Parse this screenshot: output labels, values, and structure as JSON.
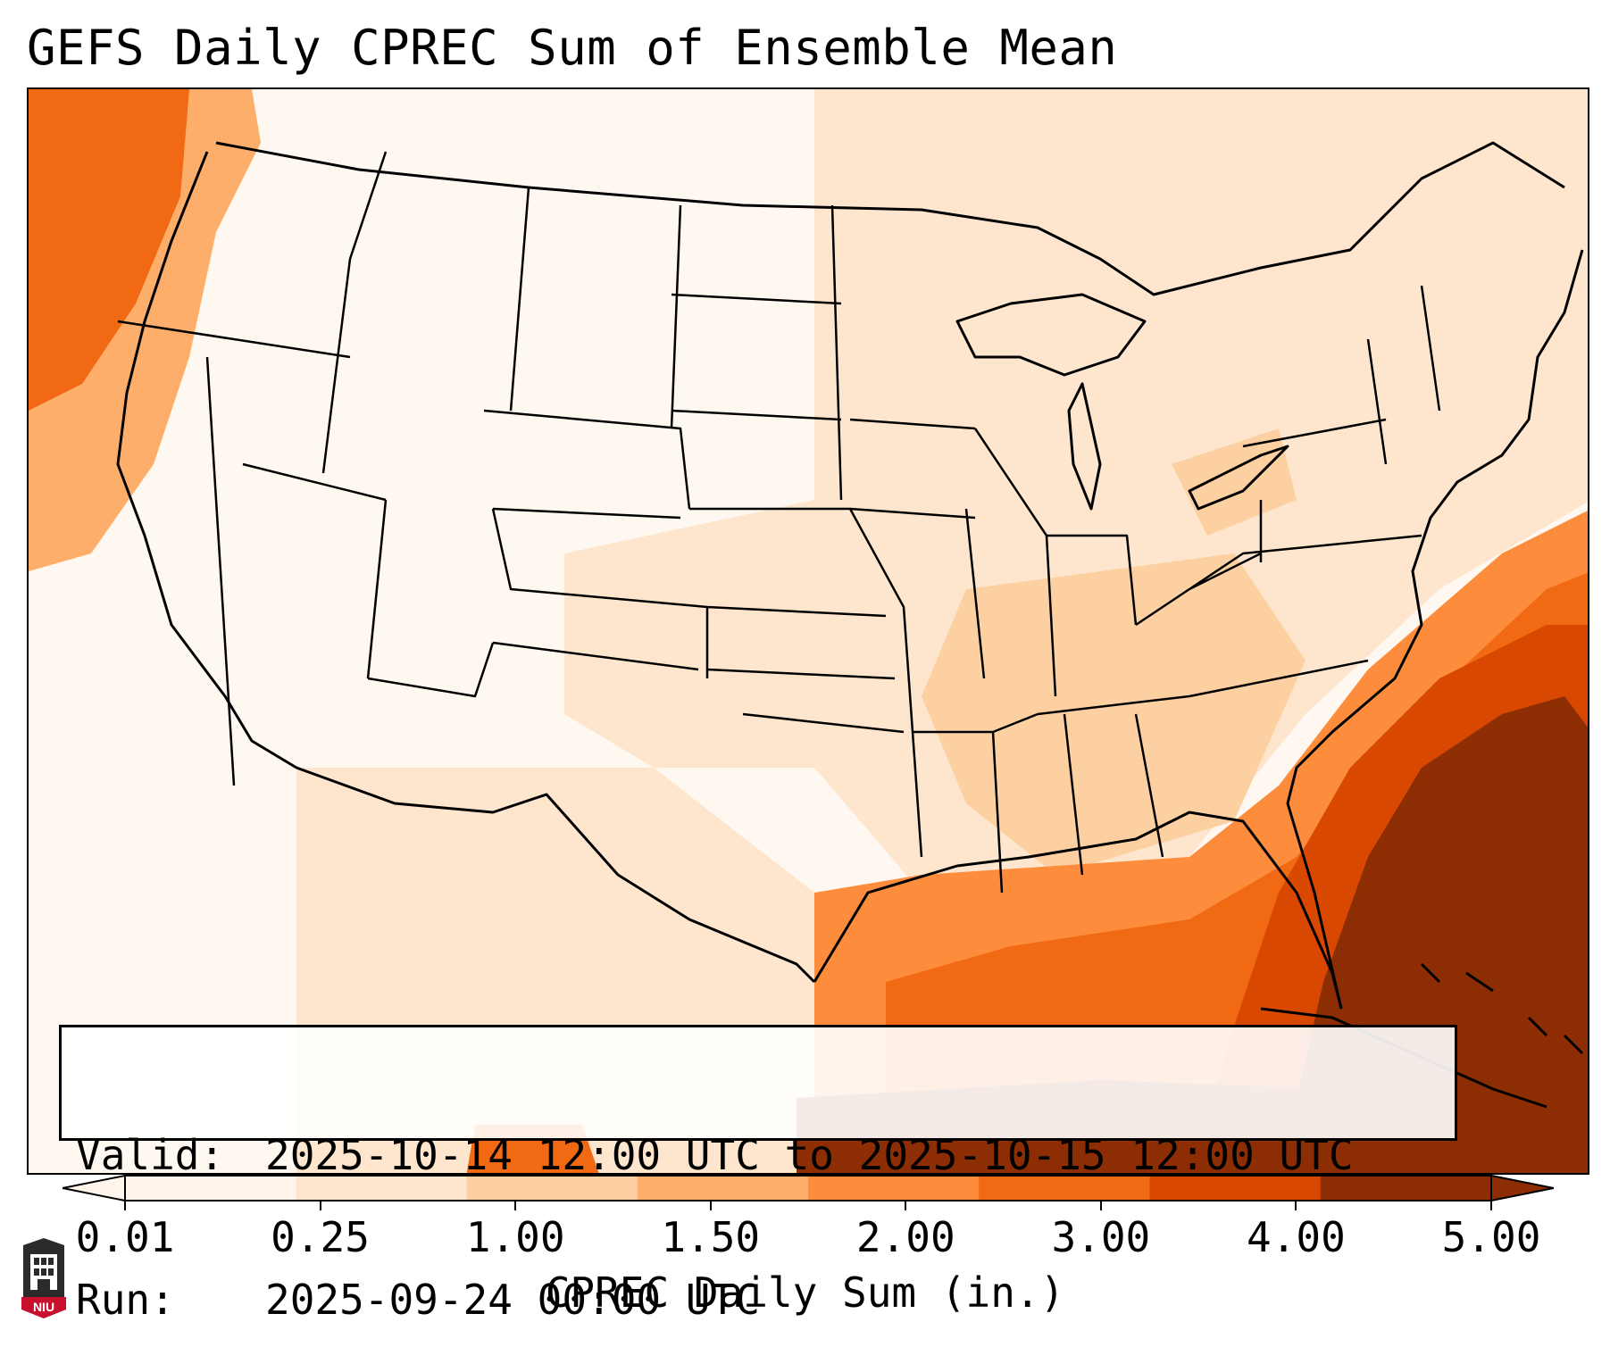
{
  "title": "GEFS Daily CPREC Sum of Ensemble Mean",
  "info": {
    "valid_label": "Valid:",
    "valid_value": "2025-10-14 12:00 UTC to 2025-10-15 12:00 UTC",
    "run_label": "Run:",
    "run_value": "2025-09-24 00:00 UTC"
  },
  "colorbar": {
    "label": "CPREC Daily Sum (in.)",
    "ticks": [
      "0.01",
      "0.25",
      "1.00",
      "1.50",
      "2.00",
      "3.00",
      "4.00",
      "5.00"
    ],
    "colors": [
      "#fff5eb",
      "#fee6ce",
      "#fdd0a2",
      "#fdae6b",
      "#fd8d3c",
      "#f16913",
      "#d94801",
      "#8c2d04"
    ],
    "extend": "both"
  },
  "logo": {
    "text": "NIU"
  },
  "map": {
    "region": "Continental United States",
    "colors": {
      "background": "#fff5eb",
      "light": "#fee6ce",
      "medium": "#fdd0a2",
      "orange": "#fdae6b",
      "deep_orange": "#f16913",
      "red_orange": "#d94801",
      "brown": "#8c2d04",
      "outline": "#000000"
    }
  }
}
